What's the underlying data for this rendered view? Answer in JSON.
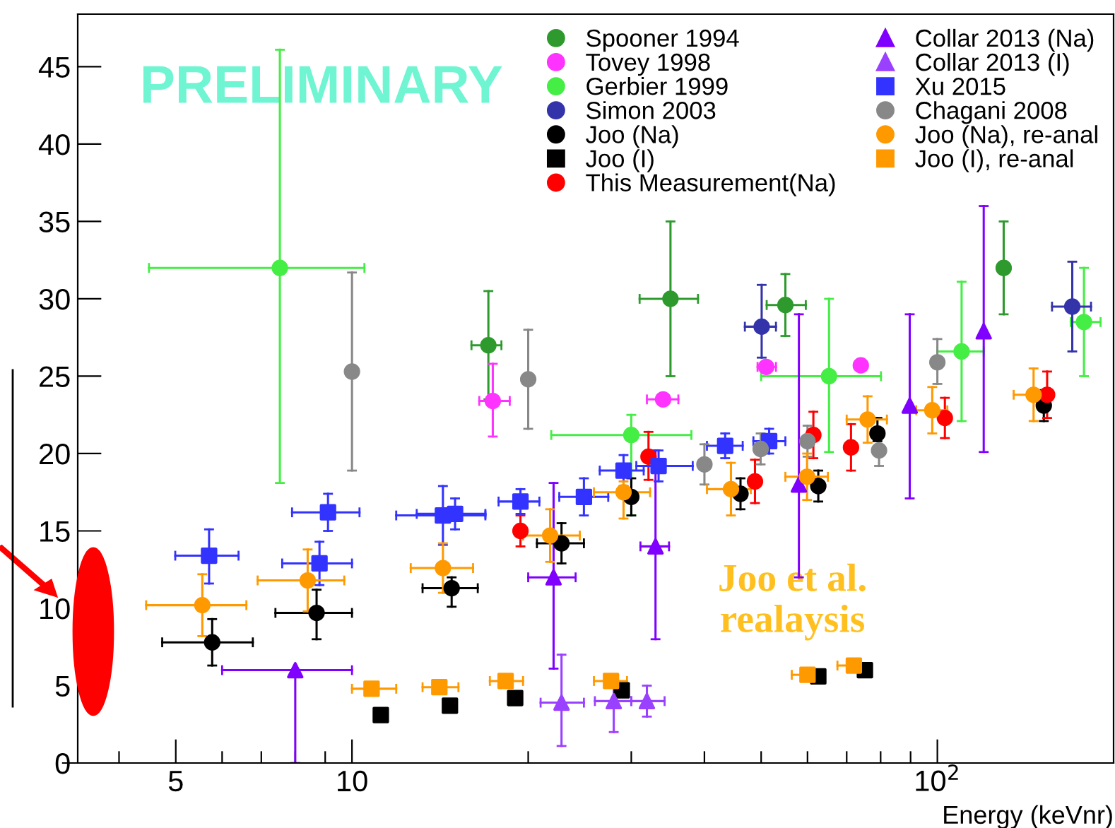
{
  "chart_data": {
    "type": "scatter",
    "xlabel": "Energy (keVnr)",
    "log": "x",
    "legend": "top right",
    "grid": false,
    "xlim": [
      3.4,
      200
    ],
    "ylim": [
      0,
      48.4
    ],
    "xticks": [
      {
        "value": 4,
        "label": null
      },
      {
        "value": 5,
        "label": "5"
      },
      {
        "value": 6,
        "label": null
      },
      {
        "value": 7,
        "label": null
      },
      {
        "value": 8,
        "label": null
      },
      {
        "value": 9,
        "label": null
      },
      10,
      {
        "value": 20,
        "label": null
      },
      {
        "value": 30,
        "label": null
      },
      {
        "value": 40,
        "label": null
      },
      {
        "value": 50,
        "label": null
      },
      {
        "value": 60,
        "label": null
      },
      {
        "value": 70,
        "label": null
      },
      {
        "value": 80,
        "label": null
      },
      {
        "value": 90,
        "label": null
      },
      {
        "value": 100,
        "label": "10$^{2}$"
      }
    ],
    "yticks": [
      0,
      5,
      10,
      15,
      20,
      25,
      30,
      35,
      40,
      45
    ],
    "annotations": [
      "PRELIMINARY",
      "Joo et al. realaysis"
    ],
    "series": [
      {
        "name": "Spooner 1994",
        "color": "#2e9a2e",
        "marker": "circle",
        "x": [
          17.1,
          35.0,
          55.0,
          129.8
        ],
        "values": [
          27.0,
          30.0,
          29.6,
          32.0
        ],
        "errors": [
          [
            23.5,
            30.5
          ],
          [
            25.0,
            35.0
          ],
          [
            27.6,
            31.6
          ],
          [
            29.0,
            35.0
          ]
        ],
        "xerrors": [
          [
            16.0,
            18.0
          ],
          [
            31.0,
            39.0
          ],
          [
            51.1,
            59.6
          ],
          null
        ]
      },
      {
        "name": "Tovey 1998",
        "color": "#ff33ff",
        "marker": "circle",
        "x": [
          17.4,
          34.0,
          51.0,
          74.0
        ],
        "values": [
          23.4,
          23.5,
          25.6,
          25.7
        ],
        "errors": [
          [
            21.1,
            25.8
          ],
          null,
          null,
          null
        ],
        "xerrors": [
          [
            16.5,
            18.6
          ],
          [
            31.9,
            36.1
          ],
          [
            49.3,
            53.0
          ],
          null
        ]
      },
      {
        "name": "Gerbier 1999",
        "color": "#44ee44",
        "marker": "circle",
        "x": [
          7.53,
          30.0,
          65.3,
          110,
          178
        ],
        "values": [
          32.0,
          21.2,
          25.0,
          26.6,
          28.5
        ],
        "errors": [
          [
            18.1,
            46.1
          ],
          [
            16.0,
            22.5
          ],
          [
            20.1,
            30.0
          ],
          [
            22.1,
            31.1
          ],
          [
            25.0,
            32.0
          ]
        ],
        "xerrors": [
          [
            4.5,
            10.5
          ],
          [
            21.9,
            38.0
          ],
          [
            50.0,
            80.1
          ],
          [
            100,
            120
          ],
          [
            169,
            190
          ]
        ]
      },
      {
        "name": "Simon 2003",
        "color": "#3333aa",
        "marker": "circle",
        "x": [
          50.1,
          170
        ],
        "values": [
          28.2,
          29.5
        ],
        "errors": [
          [
            26.2,
            30.9
          ],
          [
            26.6,
            32.4
          ]
        ],
        "xerrors": [
          [
            46.9,
            53.0
          ],
          [
            157,
            183
          ]
        ]
      },
      {
        "name": "Joo (Na)",
        "color": "#000000",
        "marker": "circle",
        "x": [
          5.77,
          8.7,
          14.8,
          22.8,
          30.0,
          46.1,
          62.6,
          79,
          103,
          152
        ],
        "values": [
          7.8,
          9.7,
          11.3,
          14.2,
          17.2,
          17.4,
          17.9,
          21.3,
          null,
          23.1
        ],
        "errors": [
          [
            6.3,
            9.3
          ],
          [
            8.0,
            11.2
          ],
          [
            10.1,
            12.0
          ],
          [
            12.9,
            15.5
          ],
          [
            16.0,
            18.4
          ],
          [
            16.4,
            18.4
          ],
          [
            16.9,
            18.9
          ],
          [
            20.8,
            22.3
          ],
          null,
          [
            22.1,
            24.1
          ]
        ],
        "xerrors": [
          [
            4.74,
            6.77
          ],
          [
            7.4,
            10.0
          ],
          [
            13.2,
            16.4
          ],
          [
            20.7,
            24.9
          ],
          null,
          null,
          null,
          null,
          null,
          null
        ]
      },
      {
        "name": "Joo (I)",
        "color": "#000000",
        "marker": "square",
        "x": [
          11.2,
          14.7,
          19.0,
          28.9,
          62.6,
          75.2
        ],
        "values": [
          3.1,
          3.7,
          4.2,
          4.7,
          5.6,
          6.0
        ]
      },
      {
        "name": "This Measurement(Na)",
        "color": "#ff0000",
        "marker": "circle",
        "x": [
          19.4,
          32.1,
          48.8,
          61.4,
          71.2,
          103,
          154
        ],
        "values": [
          15.0,
          19.8,
          18.2,
          21.2,
          20.4,
          22.3,
          23.8
        ],
        "errors": [
          [
            14.0,
            16.0
          ],
          [
            18.3,
            21.4
          ],
          [
            16.8,
            19.6
          ],
          [
            19.7,
            22.7
          ],
          [
            18.9,
            21.9
          ],
          [
            21.0,
            23.6
          ],
          [
            22.3,
            25.3
          ]
        ]
      },
      {
        "name": "Collar 2013 (Na)",
        "color": "#8000ff",
        "marker": "triangle",
        "x": [
          8.0,
          22.1,
          33.0,
          58.0,
          89.7,
          120
        ],
        "values": [
          6.0,
          12.0,
          14.0,
          18.0,
          23.1,
          27.9
        ],
        "errors": [
          [
            0,
            6.0
          ],
          [
            6.1,
            18.1
          ],
          [
            8.0,
            20.2
          ],
          [
            12.0,
            29.0
          ],
          [
            17.1,
            29.0
          ],
          [
            20.1,
            36.0
          ]
        ],
        "xerrors": [
          [
            6.0,
            10.0
          ],
          [
            20.0,
            24.1
          ],
          [
            31.1,
            34.8
          ],
          null,
          null,
          null
        ]
      },
      {
        "name": "Collar 2013 (I)",
        "color": "#9a40ff",
        "marker": "triangle",
        "x": [
          22.8,
          28.0,
          31.9
        ],
        "values": [
          3.9,
          4.0,
          4.0
        ],
        "errors": [
          [
            1.1,
            7.0
          ],
          [
            2.0,
            5.7
          ],
          [
            3.0,
            5.0
          ]
        ],
        "xerrors": [
          [
            21.0,
            24.9
          ],
          [
            26.0,
            30.0
          ],
          [
            30.0,
            34.2
          ]
        ]
      },
      {
        "name": "Xu 2015",
        "color": "#3333ff",
        "marker": "square",
        "x": [
          5.7,
          9.1,
          8.8,
          14.3,
          15.0,
          19.4,
          24.9,
          29.1,
          33.4,
          43.4,
          51.6
        ],
        "values": [
          13.4,
          16.2,
          12.9,
          16.0,
          16.1,
          16.9,
          17.2,
          18.9,
          19.2,
          20.5,
          20.8
        ],
        "errors": [
          [
            11.6,
            15.1
          ],
          [
            15.0,
            17.4
          ],
          [
            11.5,
            14.3
          ],
          [
            14.1,
            17.9
          ],
          [
            15.1,
            17.1
          ],
          [
            16.1,
            17.7
          ],
          [
            16.0,
            18.4
          ],
          [
            17.9,
            19.9
          ],
          [
            18.2,
            20.2
          ],
          [
            19.7,
            21.3
          ],
          [
            20.0,
            21.6
          ]
        ],
        "xerrors": [
          [
            4.99,
            6.4
          ],
          [
            7.9,
            10.3
          ],
          [
            7.6,
            10.0
          ],
          [
            11.9,
            16.9
          ],
          [
            12.9,
            16.9
          ],
          [
            17.8,
            20.9
          ],
          [
            22.6,
            27.4
          ],
          [
            26.5,
            31.5
          ],
          [
            30.6,
            38.2
          ],
          [
            40.4,
            46.5
          ],
          [
            48.5,
            55.0
          ]
        ]
      },
      {
        "name": "Chagani 2008",
        "color": "#888888",
        "marker": "circle",
        "x": [
          10.0,
          20.0,
          40.0,
          49.9,
          60.0,
          79.5,
          100
        ],
        "values": [
          25.3,
          24.8,
          19.3,
          20.3,
          20.8,
          20.2,
          25.9
        ],
        "errors": [
          [
            18.9,
            31.7
          ],
          [
            21.6,
            28.0
          ],
          [
            18.0,
            20.6
          ],
          [
            19.3,
            21.3
          ],
          [
            19.8,
            21.8
          ],
          [
            19.2,
            20.2
          ],
          [
            24.5,
            27.4
          ]
        ]
      },
      {
        "name": "Joo (Na), re-anal",
        "color": "#ff9900",
        "marker": "circle",
        "x": [
          5.55,
          8.4,
          14.3,
          21.8,
          29.1,
          44.4,
          59.9,
          76,
          98,
          146
        ],
        "values": [
          10.2,
          11.8,
          12.6,
          14.7,
          17.5,
          17.7,
          18.5,
          22.2,
          22.8,
          23.8
        ],
        "errors": [
          [
            8.2,
            12.2
          ],
          [
            9.8,
            13.8
          ],
          [
            11.0,
            14.2
          ],
          [
            13.0,
            16.4
          ],
          [
            15.8,
            18.2
          ],
          [
            16.0,
            19.4
          ],
          [
            17.0,
            20.0
          ],
          [
            20.7,
            23.7
          ],
          [
            21.3,
            24.3
          ],
          [
            22.1,
            25.5
          ]
        ],
        "xerrors": [
          [
            4.45,
            6.6
          ],
          [
            6.9,
            9.7
          ],
          [
            12.6,
            16.1
          ],
          [
            19.6,
            24.5
          ],
          [
            25.9,
            32.3
          ],
          [
            40.4,
            48.0
          ],
          [
            55.0,
            65.0
          ],
          [
            70.0,
            82.0
          ],
          [
            92.0,
            104.0
          ],
          [
            135,
            157
          ]
        ]
      },
      {
        "name": "Joo (I), re-anal",
        "color": "#ff9900",
        "marker": "square",
        "x": [
          10.8,
          14.1,
          18.3,
          27.7,
          60.0,
          72.0
        ],
        "values": [
          4.8,
          4.9,
          5.3,
          5.3,
          5.7,
          6.3
        ],
        "xerrors": [
          [
            10.0,
            11.9
          ],
          [
            13.2,
            15.2
          ],
          [
            17.2,
            19.6
          ],
          [
            25.9,
            29.5
          ],
          [
            56.4,
            60.0
          ],
          [
            67.5,
            72.0
          ]
        ]
      }
    ]
  }
}
